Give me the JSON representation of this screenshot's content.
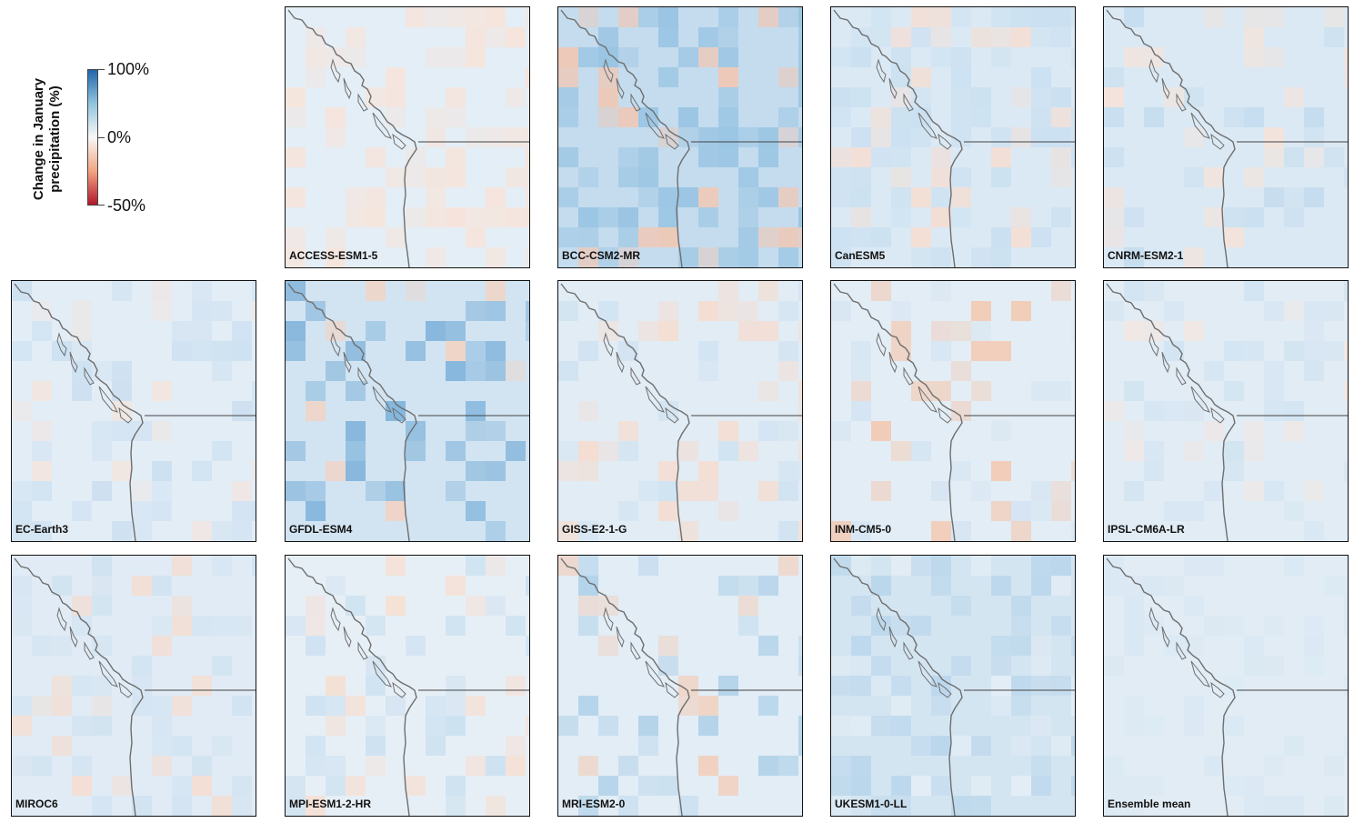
{
  "legend": {
    "title_line1": "Change in January",
    "title_line2": "precipitation (%)",
    "ticks": [
      "100%",
      "0%",
      "-50%"
    ],
    "colors": {
      "high": "#2166ac",
      "mid": "#f7f7f7",
      "low": "#b2182b"
    }
  },
  "panels": [
    {
      "label": "ACCESS-ESM1-5",
      "base": "#e4eef6",
      "blobs": [
        {
          "c": "#f8e3d8",
          "a": 0.9,
          "r": 0.7
        }
      ]
    },
    {
      "label": "BCC-CSM2-MR",
      "base": "#c4dcee",
      "blobs": [
        {
          "c": "#8fbfe0",
          "a": 0.8,
          "r": 0.9
        },
        {
          "c": "#f4c6b0",
          "a": 0.9,
          "r": 0.3
        }
      ]
    },
    {
      "label": "CanESM5",
      "base": "#dbe9f4",
      "blobs": [
        {
          "c": "#c6def0",
          "a": 0.8,
          "r": 0.8
        },
        {
          "c": "#f6ddd1",
          "a": 0.9,
          "r": 0.4
        }
      ]
    },
    {
      "label": "CNRM-ESM2-1",
      "base": "#dbe9f4",
      "blobs": [
        {
          "c": "#f6e2d8",
          "a": 0.9,
          "r": 0.6
        },
        {
          "c": "#bcd8ec",
          "a": 0.7,
          "r": 0.5
        }
      ]
    },
    {
      "label": "EC-Earth3",
      "base": "#e2edf6",
      "blobs": [
        {
          "c": "#c9def0",
          "a": 0.8,
          "r": 0.7
        },
        {
          "c": "#f5e4dc",
          "a": 0.8,
          "r": 0.3
        }
      ]
    },
    {
      "label": "GFDL-ESM4",
      "base": "#d2e4f2",
      "blobs": [
        {
          "c": "#f3d3c2",
          "a": 0.9,
          "r": 0.5
        },
        {
          "c": "#6fa9d5",
          "a": 0.8,
          "r": 0.6
        }
      ]
    },
    {
      "label": "GISS-E2-1-G",
      "base": "#e1ecf5",
      "blobs": [
        {
          "c": "#f6dccf",
          "a": 0.9,
          "r": 0.7
        },
        {
          "c": "#cadff0",
          "a": 0.7,
          "r": 0.5
        }
      ]
    },
    {
      "label": "INM-CM5-0",
      "base": "#e3edf5",
      "blobs": [
        {
          "c": "#f3c9b2",
          "a": 0.9,
          "r": 0.7
        },
        {
          "c": "#cfe2f1",
          "a": 0.7,
          "r": 0.5
        }
      ]
    },
    {
      "label": "IPSL-CM6A-LR",
      "base": "#e1ecf5",
      "blobs": [
        {
          "c": "#cfe2f1",
          "a": 0.8,
          "r": 0.6
        },
        {
          "c": "#f6e6de",
          "a": 0.8,
          "r": 0.3
        }
      ]
    },
    {
      "label": "MIROC6",
      "base": "#e0ebf5",
      "blobs": [
        {
          "c": "#cde1f0",
          "a": 0.8,
          "r": 0.6
        },
        {
          "c": "#f6dcce",
          "a": 0.9,
          "r": 0.3
        }
      ]
    },
    {
      "label": "MPI-ESM1-2-HR",
      "base": "#e7eff6",
      "blobs": [
        {
          "c": "#f6dfd2",
          "a": 0.9,
          "r": 0.6
        },
        {
          "c": "#c5ddef",
          "a": 0.8,
          "r": 0.6
        }
      ]
    },
    {
      "label": "MRI-ESM2-0",
      "base": "#e2edf6",
      "blobs": [
        {
          "c": "#f3cdb8",
          "a": 0.9,
          "r": 0.5
        },
        {
          "c": "#a9cde7",
          "a": 0.8,
          "r": 0.6
        }
      ]
    },
    {
      "label": "UKESM1-0-LL",
      "base": "#d4e5f2",
      "blobs": [
        {
          "c": "#b4d3ea",
          "a": 0.8,
          "r": 0.8
        },
        {
          "c": "#e9f1f7",
          "a": 0.7,
          "r": 0.3
        }
      ]
    },
    {
      "label": "Ensemble mean",
      "base": "#e1ecf5",
      "blobs": [
        {
          "c": "#d5e6f2",
          "a": 0.6,
          "r": 0.6
        }
      ]
    }
  ]
}
